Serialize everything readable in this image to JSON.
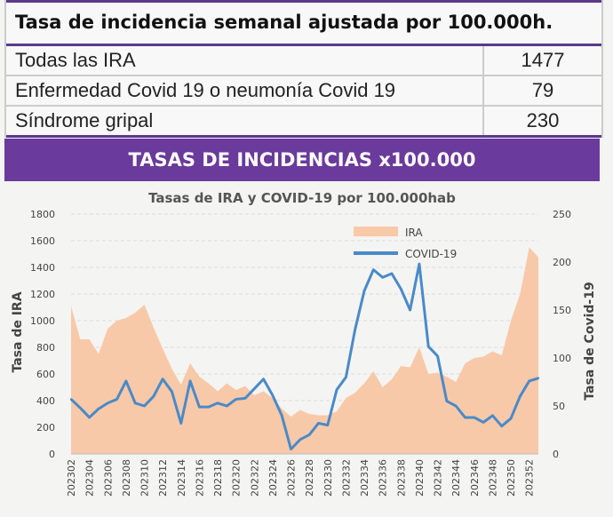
{
  "table": {
    "title": "Tasa de incidencia semanal ajustada por 100.000h.",
    "rows": [
      {
        "label": "Todas las IRA",
        "value": "1477"
      },
      {
        "label": "Enfermedad Covid 19 o neumonía Covid 19",
        "value": "79"
      },
      {
        "label": "Síndrome gripal",
        "value": "230"
      }
    ]
  },
  "banner": "TASAS DE INCIDENCIAS x100.000",
  "colors": {
    "ira": "#f8c9a8",
    "covid": "#4a8ac8",
    "banner": "#6a3a9c"
  },
  "chart_data": {
    "type": "area+line",
    "title": "Tasas de IRA y COVID-19 por 100.000hab",
    "ylabel": "Tasa de IRA",
    "y2label": "Tasa de Covid-19",
    "ylim": [
      0,
      1800
    ],
    "y2lim": [
      0,
      250
    ],
    "yticks": [
      "0",
      "200",
      "400",
      "600",
      "800",
      "1000",
      "1200",
      "1400",
      "1600",
      "1800"
    ],
    "y2ticks": [
      "0",
      "50",
      "100",
      "150",
      "200",
      "250"
    ],
    "legend_position": "top-center",
    "grid": true,
    "x": [
      "202302",
      "202303",
      "202304",
      "202305",
      "202306",
      "202307",
      "202308",
      "202309",
      "202310",
      "202311",
      "202312",
      "202313",
      "202314",
      "202315",
      "202316",
      "202317",
      "202318",
      "202319",
      "202320",
      "202321",
      "202322",
      "202323",
      "202324",
      "202325",
      "202326",
      "202327",
      "202328",
      "202329",
      "202330",
      "202331",
      "202332",
      "202333",
      "202334",
      "202335",
      "202336",
      "202337",
      "202338",
      "202339",
      "202340",
      "202341",
      "202342",
      "202343",
      "202344",
      "202345",
      "202346",
      "202347",
      "202348",
      "202349",
      "202350",
      "202351",
      "202352",
      "202353"
    ],
    "series": [
      {
        "name": "IRA",
        "axis": "left",
        "type": "area",
        "values": [
          1110,
          860,
          860,
          750,
          940,
          1000,
          1020,
          1060,
          1120,
          950,
          790,
          640,
          520,
          680,
          580,
          530,
          470,
          530,
          480,
          510,
          440,
          470,
          420,
          340,
          280,
          330,
          300,
          290,
          290,
          320,
          420,
          460,
          530,
          620,
          500,
          560,
          660,
          650,
          800,
          600,
          610,
          580,
          540,
          680,
          720,
          730,
          770,
          740,
          1000,
          1200,
          1550,
          1477
        ]
      },
      {
        "name": "COVID-19",
        "axis": "right",
        "type": "line",
        "values": [
          57,
          48,
          38,
          47,
          53,
          57,
          76,
          53,
          50,
          60,
          78,
          65,
          32,
          76,
          49,
          49,
          53,
          50,
          57,
          58,
          68,
          78,
          61,
          40,
          5,
          15,
          20,
          32,
          30,
          67,
          80,
          130,
          170,
          192,
          184,
          188,
          172,
          150,
          198,
          112,
          102,
          55,
          50,
          38,
          38,
          33,
          40,
          29,
          37,
          60,
          76,
          79
        ]
      }
    ]
  }
}
